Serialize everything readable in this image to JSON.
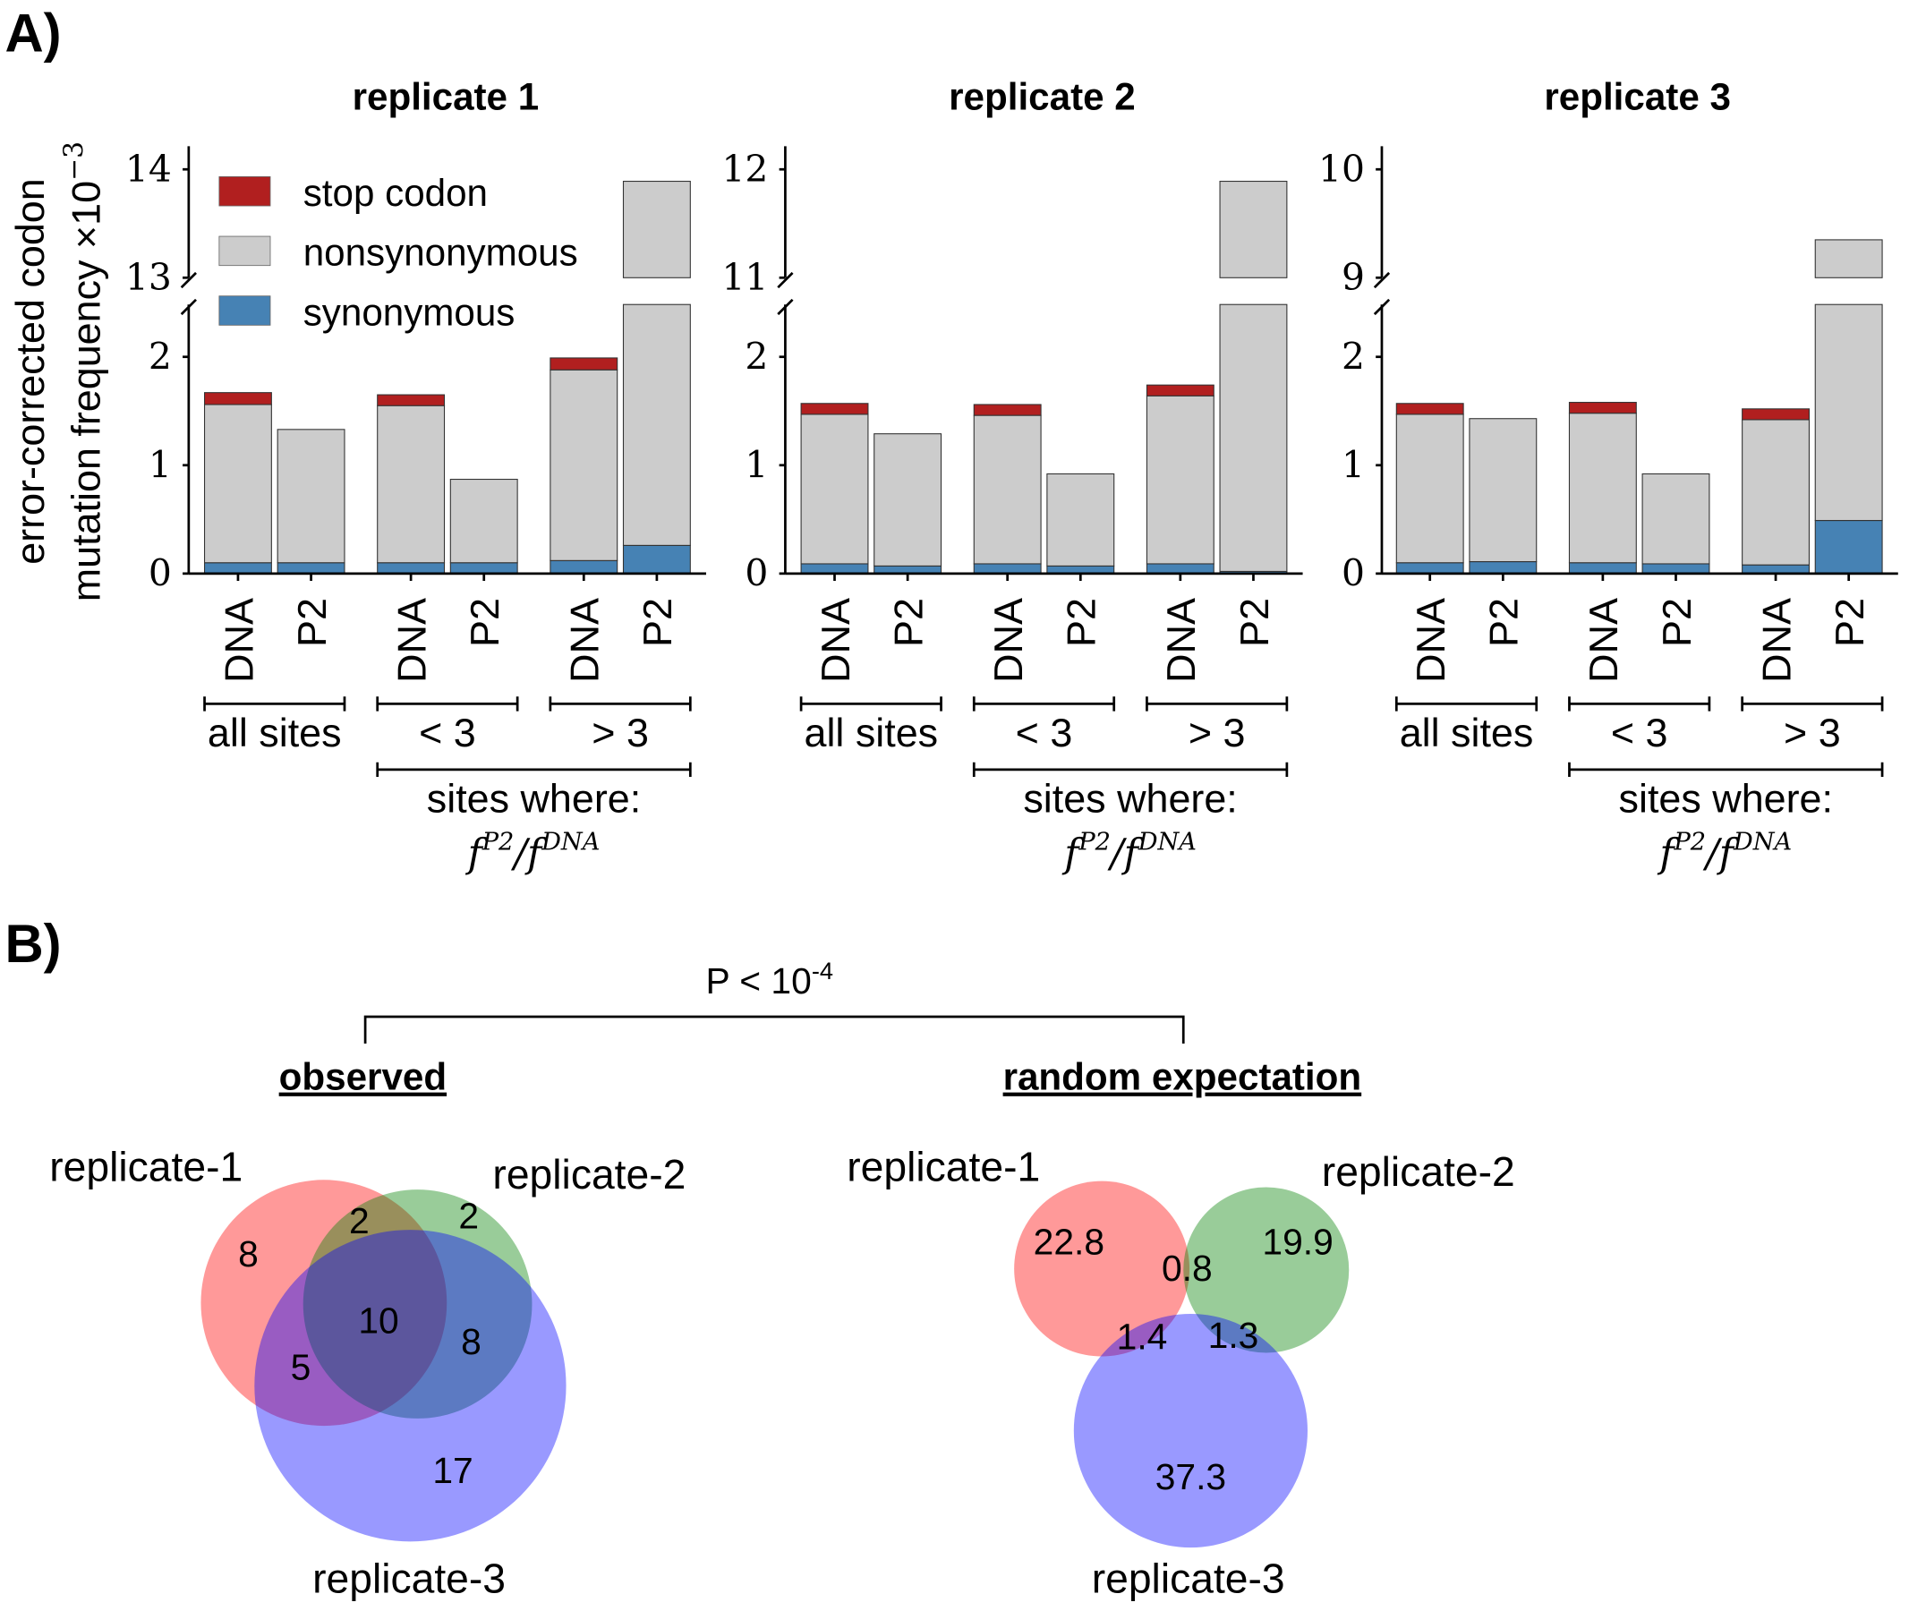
{
  "panel_a_label": "A)",
  "panel_b_label": "B)",
  "chart_data": [
    {
      "type": "bar",
      "stacked": true,
      "broken_y_axis": true,
      "ylabel_line1": "error-corrected codon",
      "ylabel_line2": "mutation frequency ×10",
      "ylabel_exponent": "−3",
      "legend": {
        "placement": "top-left",
        "entries": [
          "stop codon",
          "nonsynonymous",
          "synonymous"
        ]
      },
      "colors": {
        "stop codon": "#b11f1f",
        "nonsynonymous": "#cccccc",
        "synonymous": "#4682b4"
      },
      "categories": [
        "DNA",
        "P2",
        "DNA",
        "P2",
        "DNA",
        "P2"
      ],
      "groups": [
        "all sites",
        "< 3",
        "> 3"
      ],
      "group_super_label": "sites where:",
      "group_super_formula": "f^{P2}/f^{DNA}",
      "panels": [
        {
          "title": "replicate 1",
          "lower_ylim": [
            0,
            2.48
          ],
          "lower_ticks": [
            "0",
            "1",
            "2"
          ],
          "upper_ylim": [
            13,
            14
          ],
          "upper_ticks": [
            "13",
            "14"
          ],
          "series": [
            {
              "name": "synonymous",
              "values": [
                0.1,
                0.1,
                0.1,
                0.1,
                0.12,
                0.26
              ]
            },
            {
              "name": "nonsynonymous",
              "values": [
                1.46,
                1.23,
                1.45,
                0.77,
                1.76,
                13.63
              ]
            },
            {
              "name": "stop codon",
              "values": [
                0.11,
                0,
                0.1,
                0,
                0.11,
                0
              ]
            }
          ]
        },
        {
          "title": "replicate 2",
          "lower_ylim": [
            0,
            2.48
          ],
          "lower_ticks": [
            "0",
            "1",
            "2"
          ],
          "upper_ylim": [
            11,
            12
          ],
          "upper_ticks": [
            "11",
            "12"
          ],
          "series": [
            {
              "name": "synonymous",
              "values": [
                0.09,
                0.07,
                0.09,
                0.07,
                0.09,
                0.02
              ]
            },
            {
              "name": "nonsynonymous",
              "values": [
                1.38,
                1.22,
                1.37,
                0.85,
                1.55,
                11.87
              ]
            },
            {
              "name": "stop codon",
              "values": [
                0.1,
                0,
                0.1,
                0,
                0.1,
                0
              ]
            }
          ]
        },
        {
          "title": "replicate 3",
          "lower_ylim": [
            0,
            2.48
          ],
          "lower_ticks": [
            "0",
            "1",
            "2"
          ],
          "upper_ylim": [
            9,
            10
          ],
          "upper_ticks": [
            "9",
            "10"
          ],
          "series": [
            {
              "name": "synonymous",
              "values": [
                0.1,
                0.11,
                0.1,
                0.09,
                0.08,
                0.49
              ]
            },
            {
              "name": "nonsynonymous",
              "values": [
                1.37,
                1.32,
                1.38,
                0.83,
                1.34,
                8.86
              ]
            },
            {
              "name": "stop codon",
              "values": [
                0.1,
                0,
                0.1,
                0,
                0.1,
                0
              ]
            }
          ]
        }
      ]
    }
  ],
  "venn": {
    "comparison_label": "P < 10",
    "comparison_exponent": "-4",
    "observed": {
      "title": "observed",
      "labels": [
        "replicate-1",
        "replicate-2",
        "replicate-3"
      ],
      "regions": {
        "1": "8",
        "2": "2",
        "12": "2",
        "123": "10",
        "23": "8",
        "13": "5",
        "3": "17"
      }
    },
    "random": {
      "title": "random expectation",
      "labels": [
        "replicate-1",
        "replicate-2",
        "replicate-3"
      ],
      "regions": {
        "1": "22.8",
        "12": "0.8",
        "2": "19.9",
        "13": "1.4",
        "23": "1.3",
        "3": "37.3"
      }
    },
    "colors": {
      "replicate-1": "#ff0000",
      "replicate-2": "#008000",
      "replicate-3": "#0000ff"
    }
  }
}
